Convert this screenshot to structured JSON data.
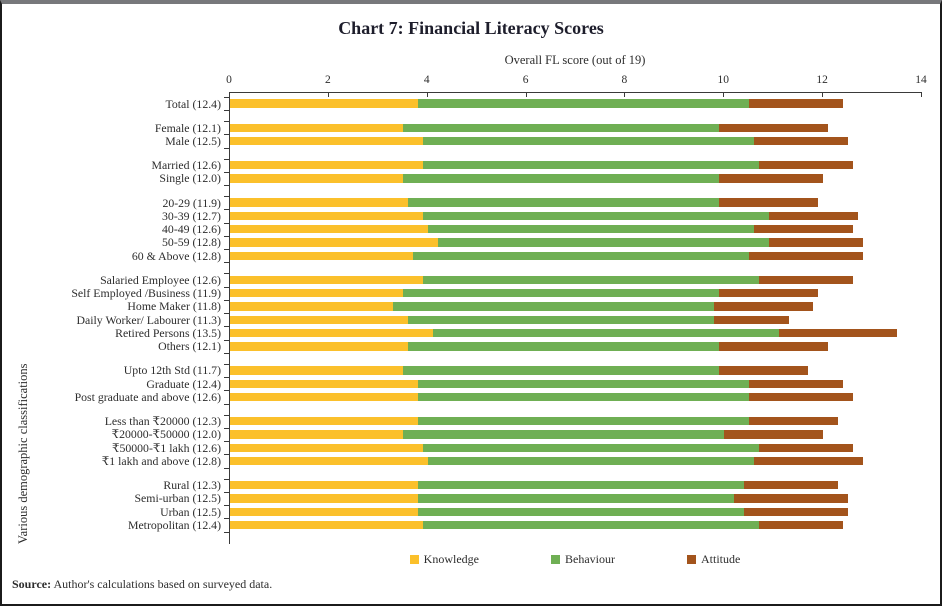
{
  "title": "Chart 7: Financial Literacy Scores",
  "source": {
    "label": "Source:",
    "text": " Author's calculations based on surveyed data."
  },
  "colors": {
    "knowledge": "#FBC02B",
    "behaviour": "#6FAF54",
    "attitude": "#A3541C",
    "axis": "#3a3a3a",
    "title_text": "#1d1d2b",
    "frame_border": "#1b1b1b",
    "frame_top_bar": "#77787b"
  },
  "chart_data": {
    "type": "bar",
    "orientation": "horizontal",
    "stacked": true,
    "title": "Chart 7: Financial Literacy Scores",
    "xlabel": "Overall FL score (out of 19)",
    "ylabel": "Various demographic classifications",
    "xlim": [
      0,
      14
    ],
    "xticks": [
      0,
      2,
      4,
      6,
      8,
      10,
      12,
      14
    ],
    "grid": false,
    "legend": [
      "Knowledge",
      "Behaviour",
      "Attitude"
    ],
    "legend_position": "bottom",
    "series_names": [
      "Knowledge",
      "Behaviour",
      "Attitude"
    ],
    "series_colors": [
      "#FBC02B",
      "#6FAF54",
      "#A3541C"
    ],
    "groups": [
      {
        "rows": [
          {
            "label": "Total (12.4)",
            "total": 12.4,
            "values": [
              3.8,
              6.7,
              1.9
            ]
          }
        ]
      },
      {
        "rows": [
          {
            "label": "Female (12.1)",
            "total": 12.1,
            "values": [
              3.5,
              6.4,
              2.2
            ]
          },
          {
            "label": "Male (12.5)",
            "total": 12.5,
            "values": [
              3.9,
              6.7,
              1.9
            ]
          }
        ]
      },
      {
        "rows": [
          {
            "label": "Married (12.6)",
            "total": 12.6,
            "values": [
              3.9,
              6.8,
              1.9
            ]
          },
          {
            "label": "Single (12.0)",
            "total": 12.0,
            "values": [
              3.5,
              6.4,
              2.1
            ]
          }
        ]
      },
      {
        "rows": [
          {
            "label": "20-29 (11.9)",
            "total": 11.9,
            "values": [
              3.6,
              6.3,
              2.0
            ]
          },
          {
            "label": "30-39 (12.7)",
            "total": 12.7,
            "values": [
              3.9,
              7.0,
              1.8
            ]
          },
          {
            "label": "40-49 (12.6)",
            "total": 12.6,
            "values": [
              4.0,
              6.6,
              2.0
            ]
          },
          {
            "label": "50-59 (12.8)",
            "total": 12.8,
            "values": [
              4.2,
              6.7,
              1.9
            ]
          },
          {
            "label": "60 & Above (12.8)",
            "total": 12.8,
            "values": [
              3.7,
              6.8,
              2.3
            ]
          }
        ]
      },
      {
        "rows": [
          {
            "label": "Salaried Employee (12.6)",
            "total": 12.6,
            "values": [
              3.9,
              6.8,
              1.9
            ]
          },
          {
            "label": "Self Employed /Business (11.9)",
            "total": 11.9,
            "values": [
              3.5,
              6.4,
              2.0
            ]
          },
          {
            "label": "Home Maker (11.8)",
            "total": 11.8,
            "values": [
              3.3,
              6.5,
              2.0
            ]
          },
          {
            "label": "Daily Worker/ Labourer (11.3)",
            "total": 11.3,
            "values": [
              3.6,
              6.2,
              1.5
            ]
          },
          {
            "label": "Retired Persons (13.5)",
            "total": 13.5,
            "values": [
              4.1,
              7.0,
              2.4
            ]
          },
          {
            "label": "Others (12.1)",
            "total": 12.1,
            "values": [
              3.6,
              6.3,
              2.2
            ]
          }
        ]
      },
      {
        "rows": [
          {
            "label": "Upto 12th Std (11.7)",
            "total": 11.7,
            "values": [
              3.5,
              6.4,
              1.8
            ]
          },
          {
            "label": "Graduate (12.4)",
            "total": 12.4,
            "values": [
              3.8,
              6.7,
              1.9
            ]
          },
          {
            "label": "Post graduate and above (12.6)",
            "total": 12.6,
            "values": [
              3.8,
              6.7,
              2.1
            ]
          }
        ]
      },
      {
        "rows": [
          {
            "label": "Less than ₹20000 (12.3)",
            "total": 12.3,
            "values": [
              3.8,
              6.7,
              1.8
            ]
          },
          {
            "label": "₹20000-₹50000 (12.0)",
            "total": 12.0,
            "values": [
              3.5,
              6.5,
              2.0
            ]
          },
          {
            "label": "₹50000-₹1 lakh (12.6)",
            "total": 12.6,
            "values": [
              3.9,
              6.8,
              1.9
            ]
          },
          {
            "label": "₹1 lakh and above (12.8)",
            "total": 12.8,
            "values": [
              4.0,
              6.6,
              2.2
            ]
          }
        ]
      },
      {
        "rows": [
          {
            "label": "Rural (12.3)",
            "total": 12.3,
            "values": [
              3.8,
              6.6,
              1.9
            ]
          },
          {
            "label": "Semi-urban (12.5)",
            "total": 12.5,
            "values": [
              3.8,
              6.4,
              2.3
            ]
          },
          {
            "label": "Urban (12.5)",
            "total": 12.5,
            "values": [
              3.8,
              6.6,
              2.1
            ]
          },
          {
            "label": "Metropolitan (12.4)",
            "total": 12.4,
            "values": [
              3.9,
              6.8,
              1.7
            ]
          }
        ]
      }
    ]
  }
}
